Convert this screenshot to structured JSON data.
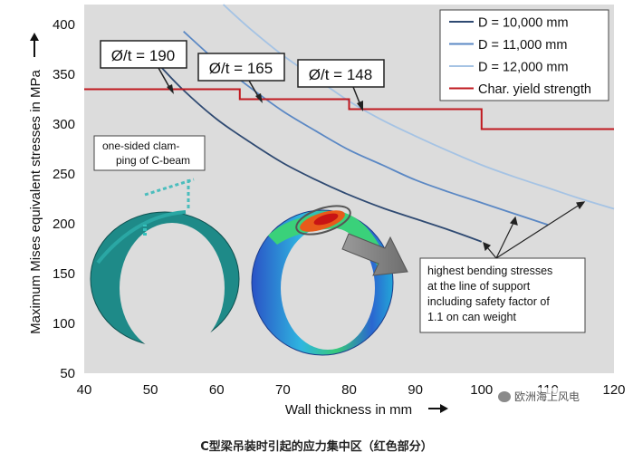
{
  "chart_data": {
    "type": "line",
    "xlabel": "Wall thickness in mm",
    "ylabel": "Maximum Mises equivalent stresses in MPa",
    "xlim": [
      40,
      120
    ],
    "ylim": [
      50,
      420
    ],
    "xticks": [
      "40",
      "50",
      "60",
      "70",
      "80",
      "90",
      "100",
      "110",
      "120"
    ],
    "yticks": [
      "50",
      "100",
      "150",
      "200",
      "250",
      "300",
      "350",
      "400"
    ],
    "grid": false,
    "legend_position": "top-right",
    "series": [
      {
        "name": "D = 10,000 mm",
        "color": "#2f4a72",
        "x": [
          51.5,
          55,
          60,
          65,
          70,
          75,
          80,
          85,
          90,
          95,
          100
        ],
        "y": [
          358,
          334,
          305,
          282,
          261,
          244,
          229,
          216,
          205,
          194,
          182
        ]
      },
      {
        "name": "D = 11,000 mm",
        "color": "#5b88c4",
        "x": [
          55,
          60,
          65,
          70,
          75,
          80,
          85,
          90,
          95,
          100,
          105,
          110
        ],
        "y": [
          393,
          363,
          337,
          313,
          293,
          274,
          259,
          244,
          232,
          221,
          210,
          199
        ]
      },
      {
        "name": "D = 12,000 mm",
        "color": "#a5c3e4",
        "x": [
          61,
          65,
          70,
          75,
          80,
          85,
          90,
          95,
          100,
          105,
          110,
          115,
          120
        ],
        "y": [
          420,
          396,
          369,
          346,
          323,
          304,
          288,
          273,
          259,
          247,
          236,
          225,
          215
        ]
      },
      {
        "name": "Char. yield strength",
        "color": "#c0191f",
        "step": true,
        "x": [
          40,
          63.5,
          63.5,
          80,
          80,
          100,
          100,
          120
        ],
        "y": [
          335,
          335,
          325,
          325,
          315,
          315,
          295,
          295
        ]
      }
    ],
    "annotations": [
      {
        "text": "Ø/t = 190"
      },
      {
        "text": "Ø/t = 165"
      },
      {
        "text": "Ø/t = 148"
      },
      {
        "text": "one-sided clam-ping of C-beam",
        "lines": [
          "one-sided clam-",
          "ping of C-beam"
        ]
      },
      {
        "text": "highest bending stresses at the line of support including safety factor of 1.1 on can weight",
        "lines": [
          "highest bending stresses",
          "at the line of support",
          "including safety factor of",
          "1.1 on can weight"
        ]
      }
    ]
  },
  "caption": "C型梁吊装时引起的应力集中区（红色部分）",
  "watermark": "欧洲海上风电",
  "colors": {
    "plot_bg": "#dcdcdc",
    "yield": "#c0191f"
  }
}
